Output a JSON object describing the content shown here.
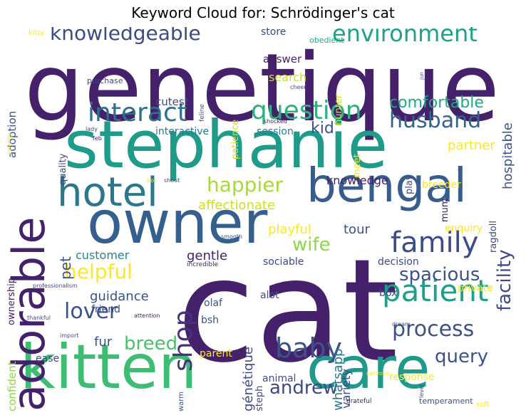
{
  "chart_data": {
    "type": "wordcloud",
    "title": "Keyword Cloud for: Schrödinger's cat",
    "words": [
      {
        "text": "cat",
        "weight": 1.0,
        "color": "#46216b",
        "orientation": "horizontal"
      },
      {
        "text": "genetique",
        "weight": 0.98,
        "color": "#46216b",
        "orientation": "horizontal"
      },
      {
        "text": "stephanie",
        "weight": 0.72,
        "color": "#1f9c89",
        "orientation": "horizontal"
      },
      {
        "text": "kitten",
        "weight": 0.72,
        "color": "#3fbc73",
        "orientation": "horizontal"
      },
      {
        "text": "owner",
        "weight": 0.7,
        "color": "#34608d",
        "orientation": "horizontal"
      },
      {
        "text": "care",
        "weight": 0.66,
        "color": "#1f9a8a",
        "orientation": "horizontal"
      },
      {
        "text": "bengal",
        "weight": 0.6,
        "color": "#365d8d",
        "orientation": "horizontal"
      },
      {
        "text": "adorable",
        "weight": 0.56,
        "color": "#46216b",
        "orientation": "vertical"
      },
      {
        "text": "hotel",
        "weight": 0.5,
        "color": "#2a788e",
        "orientation": "horizontal"
      },
      {
        "text": "patient",
        "weight": 0.36,
        "color": "#1f9f88",
        "orientation": "horizontal"
      },
      {
        "text": "family",
        "weight": 0.34,
        "color": "#3d4d8a",
        "orientation": "horizontal"
      },
      {
        "text": "interact",
        "weight": 0.3,
        "color": "#2c718e",
        "orientation": "horizontal"
      },
      {
        "text": "question",
        "weight": 0.3,
        "color": "#2db27d",
        "orientation": "horizontal"
      },
      {
        "text": "shop",
        "weight": 0.3,
        "color": "#46337e",
        "orientation": "vertical"
      },
      {
        "text": "baby",
        "weight": 0.3,
        "color": "#3b528b",
        "orientation": "horizontal"
      },
      {
        "text": "environment",
        "weight": 0.25,
        "color": "#1fa187",
        "orientation": "horizontal"
      },
      {
        "text": "husband",
        "weight": 0.25,
        "color": "#33638d",
        "orientation": "horizontal"
      },
      {
        "text": "knowledgeable",
        "weight": 0.24,
        "color": "#3e4a89",
        "orientation": "horizontal"
      },
      {
        "text": "process",
        "weight": 0.26,
        "color": "#3b528b",
        "orientation": "horizontal"
      },
      {
        "text": "lover",
        "weight": 0.26,
        "color": "#3b528b",
        "orientation": "horizontal"
      },
      {
        "text": "helpful",
        "weight": 0.26,
        "color": "#fde725",
        "orientation": "horizontal"
      },
      {
        "text": "happier",
        "weight": 0.25,
        "color": "#a5db36",
        "orientation": "horizontal"
      },
      {
        "text": "wife",
        "weight": 0.24,
        "color": "#8fd744",
        "orientation": "horizontal"
      },
      {
        "text": "breed",
        "weight": 0.24,
        "color": "#4ac16d",
        "orientation": "horizontal"
      },
      {
        "text": "andrew",
        "weight": 0.24,
        "color": "#3e4989",
        "orientation": "horizontal"
      },
      {
        "text": "spacious",
        "weight": 0.24,
        "color": "#3b528b",
        "orientation": "horizontal"
      },
      {
        "text": "query",
        "weight": 0.24,
        "color": "#3b528b",
        "orientation": "horizontal"
      },
      {
        "text": "facility",
        "weight": 0.22,
        "color": "#3e4a89",
        "orientation": "vertical"
      },
      {
        "text": "comfortable",
        "weight": 0.18,
        "color": "#22a884",
        "orientation": "horizontal"
      },
      {
        "text": "kid",
        "weight": 0.18,
        "color": "#3b528b",
        "orientation": "horizontal"
      },
      {
        "text": "partner",
        "weight": 0.16,
        "color": "#fde725",
        "orientation": "horizontal"
      },
      {
        "text": "hospitable",
        "weight": 0.16,
        "color": "#3b528b",
        "orientation": "vertical"
      },
      {
        "text": "affectionate",
        "weight": 0.16,
        "color": "#cde11d",
        "orientation": "horizontal"
      },
      {
        "text": "pet",
        "weight": 0.18,
        "color": "#3b528b",
        "orientation": "vertical"
      },
      {
        "text": "guidance",
        "weight": 0.16,
        "color": "#3b528b",
        "orientation": "horizontal"
      },
      {
        "text": "fur",
        "weight": 0.16,
        "color": "#3b528b",
        "orientation": "horizontal"
      },
      {
        "text": "gentle",
        "weight": 0.14,
        "color": "#46216b",
        "orientation": "horizontal"
      },
      {
        "text": "customer",
        "weight": 0.14,
        "color": "#25858e",
        "orientation": "horizontal"
      },
      {
        "text": "playful",
        "weight": 0.14,
        "color": "#fde725",
        "orientation": "horizontal"
      },
      {
        "text": "tour",
        "weight": 0.14,
        "color": "#3b528b",
        "orientation": "horizontal"
      },
      {
        "text": "knowledge",
        "weight": 0.13,
        "color": "#46216b",
        "orientation": "horizontal"
      },
      {
        "text": "whatsapp",
        "weight": 0.15,
        "color": "#2a788e",
        "orientation": "vertical"
      },
      {
        "text": "génétique",
        "weight": 0.15,
        "color": "#3e4a89",
        "orientation": "vertical"
      },
      {
        "text": "variety",
        "weight": 0.13,
        "color": "#3e4a89",
        "orientation": "vertical"
      },
      {
        "text": "confident",
        "weight": 0.13,
        "color": "#8fd744",
        "orientation": "vertical"
      },
      {
        "text": "ownership",
        "weight": 0.12,
        "color": "#46216b",
        "orientation": "vertical"
      },
      {
        "text": "adoption",
        "weight": 0.12,
        "color": "#3b528b",
        "orientation": "vertical"
      },
      {
        "text": "cutest",
        "weight": 0.12,
        "color": "#3e4a89",
        "orientation": "horizontal"
      },
      {
        "text": "interactive",
        "weight": 0.11,
        "color": "#2a788e",
        "orientation": "horizontal"
      },
      {
        "text": "session",
        "weight": 0.11,
        "color": "#2a788e",
        "orientation": "horizontal"
      },
      {
        "text": "search",
        "weight": 0.13,
        "color": "#cde11d",
        "orientation": "horizontal"
      },
      {
        "text": "answer",
        "weight": 0.12,
        "color": "#46216b",
        "orientation": "horizontal"
      },
      {
        "text": "store",
        "weight": 0.11,
        "color": "#3e4a89",
        "orientation": "horizontal"
      },
      {
        "text": "friend",
        "weight": 0.1,
        "color": "#3e4a89",
        "orientation": "horizontal"
      },
      {
        "text": "olaf",
        "weight": 0.11,
        "color": "#3b528b",
        "orientation": "horizontal"
      },
      {
        "text": "bsh",
        "weight": 0.11,
        "color": "#3b528b",
        "orientation": "horizontal"
      },
      {
        "text": "alot",
        "weight": 0.1,
        "color": "#3b528b",
        "orientation": "horizontal"
      },
      {
        "text": "sociable",
        "weight": 0.1,
        "color": "#3e4a89",
        "orientation": "horizontal"
      },
      {
        "text": "decision",
        "weight": 0.11,
        "color": "#3e4a89",
        "orientation": "horizontal"
      },
      {
        "text": "private",
        "weight": 0.1,
        "color": "#fde725",
        "orientation": "horizontal"
      },
      {
        "text": "enquiry",
        "weight": 0.1,
        "color": "#fde725",
        "orientation": "horizontal"
      },
      {
        "text": "box",
        "weight": 0.1,
        "color": "#3e4a89",
        "orientation": "horizontal"
      },
      {
        "text": "response",
        "weight": 0.1,
        "color": "#fde725",
        "orientation": "horizontal"
      },
      {
        "text": "ease",
        "weight": 0.1,
        "color": "#3e4a89",
        "orientation": "horizontal"
      },
      {
        "text": "parent",
        "weight": 0.1,
        "color": "#fde725",
        "orientation": "horizontal"
      },
      {
        "text": "animal",
        "weight": 0.1,
        "color": "#3e4a89",
        "orientation": "horizontal"
      },
      {
        "text": "breeder",
        "weight": 0.1,
        "color": "#fde725",
        "orientation": "horizontal"
      },
      {
        "text": "quality",
        "weight": 0.1,
        "color": "#3e4a89",
        "orientation": "vertical"
      },
      {
        "text": "ragdoll",
        "weight": 0.1,
        "color": "#3e4a89",
        "orientation": "vertical"
      },
      {
        "text": "mum",
        "weight": 0.09,
        "color": "#46216b",
        "orientation": "vertical"
      },
      {
        "text": "play",
        "weight": 0.09,
        "color": "#3e4a89",
        "orientation": "vertical"
      },
      {
        "text": "patience",
        "weight": 0.1,
        "color": "#cde11d",
        "orientation": "vertical"
      },
      {
        "text": "meet",
        "weight": 0.09,
        "color": "#fde725",
        "orientation": "vertical"
      },
      {
        "text": "hunter",
        "weight": 0.09,
        "color": "#cde11d",
        "orientation": "vertical"
      },
      {
        "text": "steph",
        "weight": 0.09,
        "color": "#3e4a89",
        "orientation": "vertical"
      },
      {
        "text": "warm",
        "weight": 0.07,
        "color": "#3b528b",
        "orientation": "vertical"
      },
      {
        "text": "obedient",
        "weight": 0.07,
        "color": "#22a884",
        "orientation": "horizontal"
      },
      {
        "text": "kitty",
        "weight": 0.06,
        "color": "#fde725",
        "orientation": "horizontal"
      },
      {
        "text": "purchase",
        "weight": 0.07,
        "color": "#3e4a89",
        "orientation": "horizontal"
      },
      {
        "text": "feline",
        "weight": 0.05,
        "color": "#3e4a89",
        "orientation": "vertical"
      },
      {
        "text": "cheer",
        "weight": 0.05,
        "color": "#3e4a89",
        "orientation": "horizontal"
      },
      {
        "text": "jun",
        "weight": 0.04,
        "color": "#3e4a89",
        "orientation": "vertical"
      },
      {
        "text": "energy",
        "weight": 0.05,
        "color": "#fde725",
        "orientation": "vertical"
      },
      {
        "text": "lady",
        "weight": 0.05,
        "color": "#3e4a89",
        "orientation": "horizontal"
      },
      {
        "text": "shocked",
        "weight": 0.05,
        "color": "#46216b",
        "orientation": "horizontal"
      },
      {
        "text": "feb",
        "weight": 0.04,
        "color": "#46216b",
        "orientation": "horizontal"
      },
      {
        "text": "bos",
        "weight": 0.04,
        "color": "#fde725",
        "orientation": "horizontal"
      },
      {
        "text": "shout",
        "weight": 0.04,
        "color": "#3e4a89",
        "orientation": "horizontal"
      },
      {
        "text": "smooth",
        "weight": 0.04,
        "color": "#3e4a89",
        "orientation": "horizontal"
      },
      {
        "text": "incredible",
        "weight": 0.05,
        "color": "#46216b",
        "orientation": "horizontal"
      },
      {
        "text": "professionalism",
        "weight": 0.04,
        "color": "#3e4a89",
        "orientation": "horizontal"
      },
      {
        "text": "thankful",
        "weight": 0.04,
        "color": "#3e4a89",
        "orientation": "horizontal"
      },
      {
        "text": "attention",
        "weight": 0.04,
        "color": "#46216b",
        "orientation": "horizontal"
      },
      {
        "text": "import",
        "weight": 0.04,
        "color": "#3e4a89",
        "orientation": "horizontal"
      },
      {
        "text": "dream",
        "weight": 0.04,
        "color": "#3e4a89",
        "orientation": "horizontal"
      },
      {
        "text": "nervous",
        "weight": 0.04,
        "color": "#fde725",
        "orientation": "horizontal"
      },
      {
        "text": "level",
        "weight": 0.04,
        "color": "#3e4a89",
        "orientation": "vertical"
      },
      {
        "text": "grateful",
        "weight": 0.05,
        "color": "#46216b",
        "orientation": "horizontal"
      },
      {
        "text": "temperament",
        "weight": 0.06,
        "color": "#3b528b",
        "orientation": "horizontal"
      },
      {
        "text": "soft",
        "weight": 0.06,
        "color": "#fde725",
        "orientation": "horizontal"
      }
    ]
  }
}
